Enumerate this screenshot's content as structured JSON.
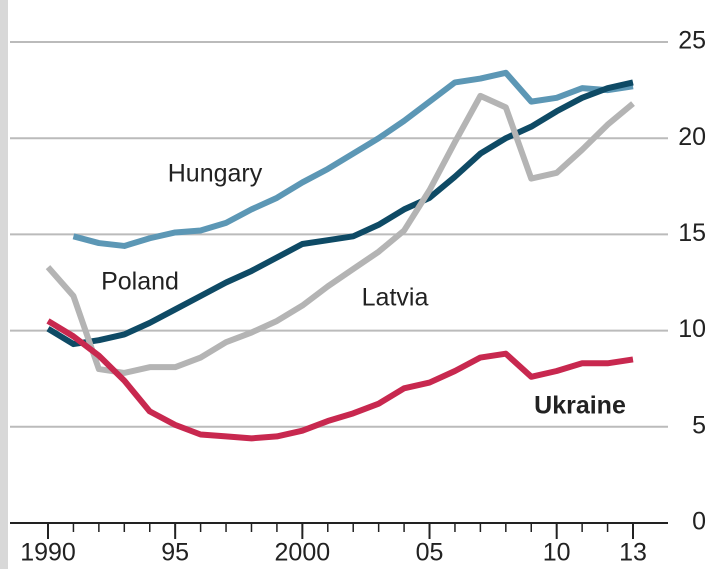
{
  "chart_data": {
    "type": "line",
    "x": [
      1990,
      1991,
      1992,
      1993,
      1994,
      1995,
      1996,
      1997,
      1998,
      1999,
      2000,
      2001,
      2002,
      2003,
      2004,
      2005,
      2006,
      2007,
      2008,
      2009,
      2010,
      2011,
      2012,
      2013
    ],
    "series": [
      {
        "name": "Hungary",
        "color": "#5c97b5",
        "values": [
          null,
          14.9,
          14.55,
          14.4,
          14.8,
          15.1,
          15.2,
          15.6,
          16.3,
          16.9,
          17.7,
          18.4,
          19.2,
          20.0,
          20.9,
          21.9,
          22.9,
          23.1,
          23.4,
          21.9,
          22.1,
          22.6,
          22.5,
          22.7
        ]
      },
      {
        "name": "Poland",
        "color": "#0e4a65",
        "values": [
          10.1,
          9.3,
          9.5,
          9.8,
          10.4,
          11.1,
          11.8,
          12.5,
          13.1,
          13.8,
          14.5,
          14.7,
          14.9,
          15.5,
          16.3,
          16.9,
          18.0,
          19.2,
          20.0,
          20.6,
          21.4,
          22.1,
          22.6,
          22.9
        ]
      },
      {
        "name": "Latvia",
        "color": "#b4b4b4",
        "values": [
          13.3,
          11.8,
          8.0,
          7.8,
          8.1,
          8.1,
          8.6,
          9.4,
          9.9,
          10.5,
          11.3,
          12.3,
          13.2,
          14.1,
          15.2,
          17.3,
          19.8,
          22.2,
          21.6,
          17.9,
          18.2,
          19.4,
          20.7,
          21.8
        ]
      },
      {
        "name": "Ukraine",
        "color": "#c8284f",
        "values": [
          10.5,
          9.7,
          8.7,
          7.4,
          5.8,
          5.1,
          4.6,
          4.5,
          4.4,
          4.5,
          4.8,
          5.3,
          5.7,
          6.2,
          7.0,
          7.3,
          7.9,
          8.6,
          8.8,
          7.6,
          7.9,
          8.3,
          8.3,
          8.5
        ]
      }
    ],
    "xlim": [
      1990,
      2013
    ],
    "xticks": [
      1990,
      {
        "value": 1995,
        "label": "95"
      },
      2000,
      {
        "value": 2005,
        "label": "05"
      },
      {
        "value": 2010,
        "label": "10"
      },
      {
        "value": 2013,
        "label": "13"
      }
    ],
    "ylim": [
      0,
      25
    ],
    "yticks": [
      0,
      5,
      10,
      15,
      20,
      25
    ],
    "grid": true
  }
}
